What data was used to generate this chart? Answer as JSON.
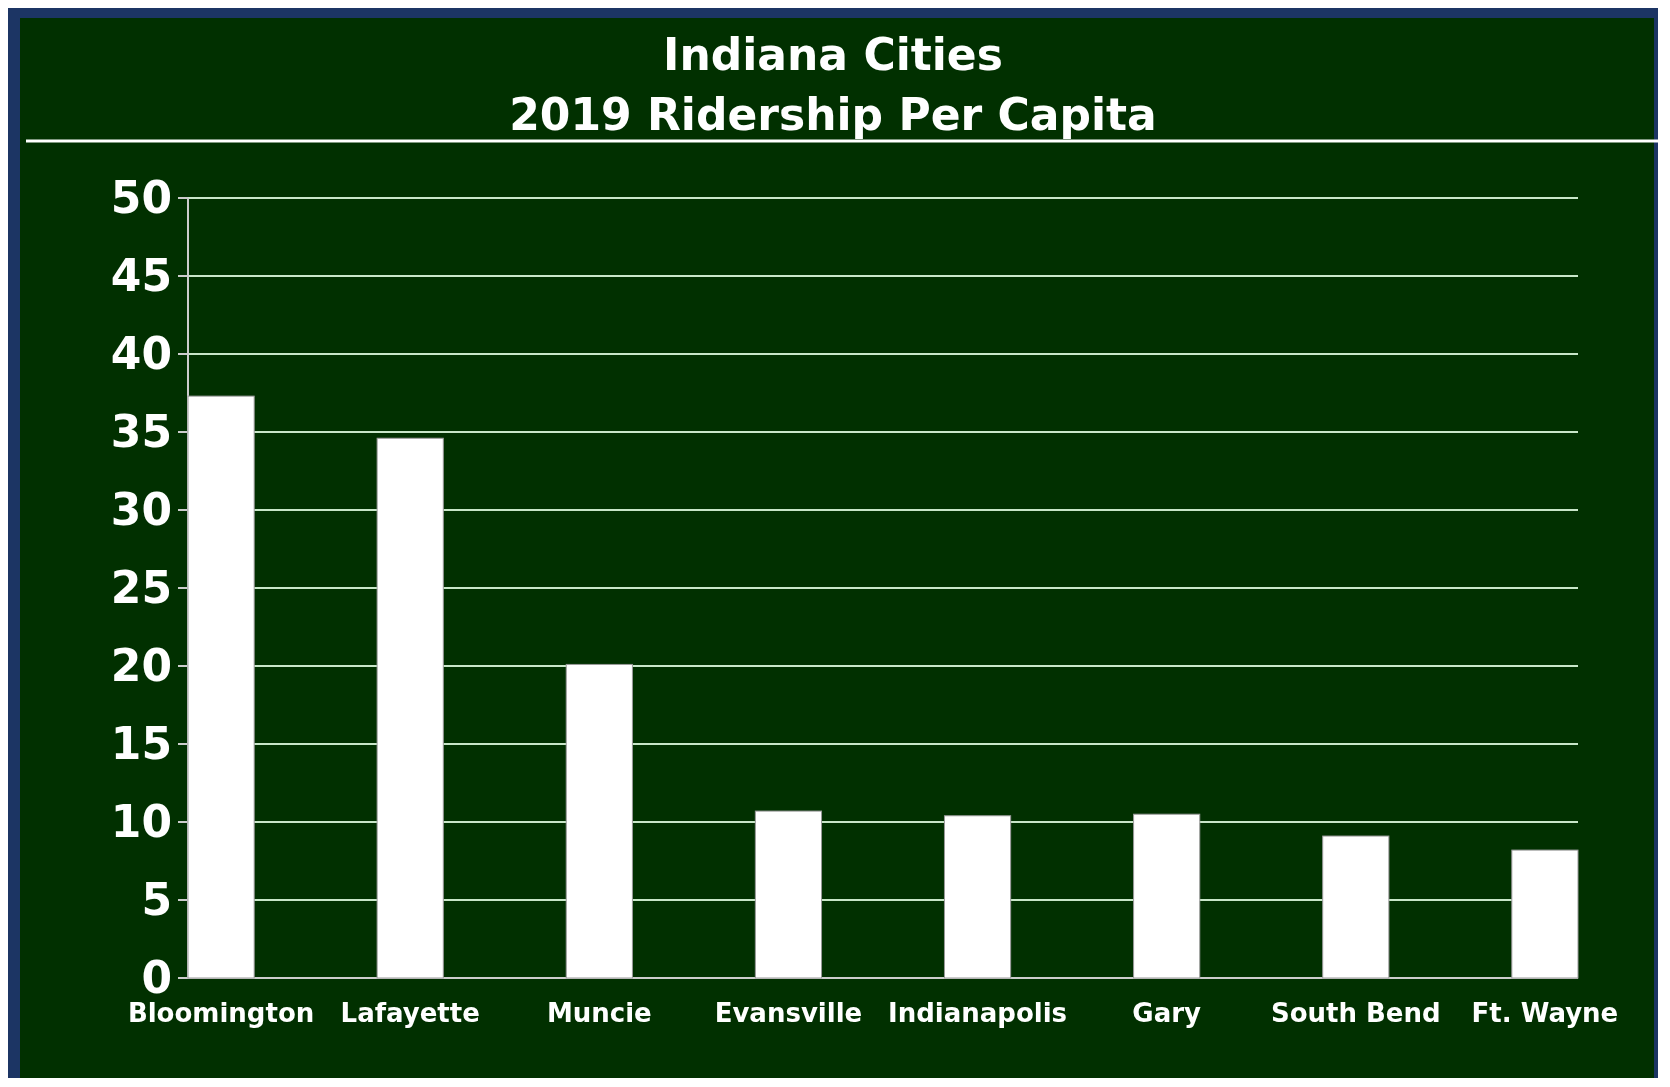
{
  "chart_data": {
    "type": "bar",
    "title": "Indiana Cities",
    "subtitle": "2019 Ridership Per Capita",
    "categories": [
      "Bloomington",
      "Lafayette",
      "Muncie",
      "Evansville",
      "Indianapolis",
      "Gary",
      "South Bend",
      "Ft. Wayne"
    ],
    "values": [
      37.3,
      34.6,
      20.1,
      10.7,
      10.4,
      10.5,
      9.1,
      8.2
    ],
    "color": "#ffffff",
    "ylim": [
      0,
      50
    ],
    "yticks": [
      0,
      5,
      10,
      15,
      20,
      25,
      30,
      35,
      40,
      45,
      50
    ],
    "grid": true
  }
}
